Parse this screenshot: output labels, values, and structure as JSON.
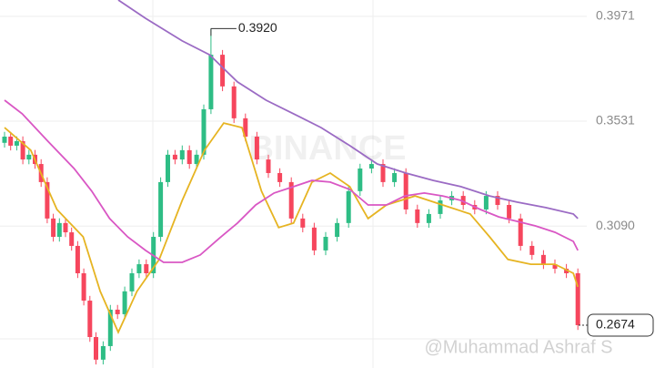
{
  "chart_data": {
    "type": "candlestick",
    "ylim": [
      0.2494,
      0.404
    ],
    "yticks": [
      0.3971,
      0.3531,
      {
        "value": 0.309,
        "label": "0.3090"
      }
    ],
    "grid": true,
    "up_color": "#2ebd85",
    "down_color": "#f6465d",
    "open": [
      0.344,
      0.3466,
      0.3428,
      0.3447,
      0.337,
      0.339,
      0.3351,
      0.3275,
      0.3122,
      0.3045,
      0.3103,
      0.3064,
      0.3007,
      0.2892,
      0.2777,
      0.2624,
      0.2529,
      0.2586,
      0.2739,
      0.272,
      0.2816,
      0.2892,
      0.293,
      0.2892,
      0.3045,
      0.3275,
      0.339,
      0.337,
      0.3409,
      0.3351,
      0.339,
      0.3581,
      0.381,
      0.3677,
      0.3543,
      0.3466,
      0.337,
      0.3313,
      0.3275,
      0.3122,
      0.3084,
      0.2988,
      0.3045,
      0.3103,
      0.3237,
      0.3332,
      0.3351,
      0.3275,
      0.3313,
      0.316,
      0.3103,
      0.3141,
      0.3198,
      0.3217,
      0.3179,
      0.316,
      0.3217,
      0.3179,
      0.3122,
      0.3007,
      0.2969,
      0.293,
      0.2911,
      0.2892
    ],
    "high": [
      0.3486,
      0.3486,
      0.3467,
      0.3467,
      0.341,
      0.341,
      0.3371,
      0.3295,
      0.3142,
      0.3123,
      0.3123,
      0.3084,
      0.3027,
      0.2912,
      0.2797,
      0.2644,
      0.2606,
      0.2759,
      0.2759,
      0.2836,
      0.2912,
      0.295,
      0.295,
      0.3065,
      0.3295,
      0.341,
      0.341,
      0.3429,
      0.3429,
      0.341,
      0.3601,
      0.392,
      0.383,
      0.3697,
      0.3563,
      0.3486,
      0.339,
      0.3333,
      0.3295,
      0.3142,
      0.3104,
      0.3065,
      0.3123,
      0.3257,
      0.3352,
      0.3371,
      0.3371,
      0.3333,
      0.3333,
      0.318,
      0.3161,
      0.3218,
      0.3237,
      0.3237,
      0.3199,
      0.3237,
      0.3237,
      0.3199,
      0.3142,
      0.3027,
      0.2989,
      0.295,
      0.2931,
      0.2912
    ],
    "low": [
      0.342,
      0.3408,
      0.3408,
      0.335,
      0.335,
      0.3331,
      0.3255,
      0.3102,
      0.3025,
      0.3025,
      0.3044,
      0.2987,
      0.2872,
      0.2757,
      0.2604,
      0.2509,
      0.2509,
      0.2566,
      0.27,
      0.27,
      0.2796,
      0.2872,
      0.2872,
      0.2872,
      0.3025,
      0.3255,
      0.335,
      0.335,
      0.3331,
      0.3331,
      0.337,
      0.3561,
      0.3657,
      0.3523,
      0.3446,
      0.335,
      0.3293,
      0.3255,
      0.3102,
      0.3064,
      0.2968,
      0.2968,
      0.3025,
      0.3083,
      0.3217,
      0.3312,
      0.3255,
      0.3255,
      0.314,
      0.3083,
      0.3083,
      0.3121,
      0.3178,
      0.3159,
      0.314,
      0.314,
      0.3159,
      0.3102,
      0.2987,
      0.2949,
      0.291,
      0.2891,
      0.2872,
      0.2654
    ],
    "close": [
      0.3466,
      0.3428,
      0.3447,
      0.337,
      0.339,
      0.3351,
      0.3275,
      0.3122,
      0.3045,
      0.3103,
      0.3064,
      0.3007,
      0.2892,
      0.2777,
      0.2624,
      0.2529,
      0.2586,
      0.2739,
      0.272,
      0.2816,
      0.2892,
      0.293,
      0.2892,
      0.3045,
      0.3275,
      0.339,
      0.337,
      0.3409,
      0.3351,
      0.339,
      0.3581,
      0.381,
      0.3677,
      0.3543,
      0.3466,
      0.337,
      0.3313,
      0.3275,
      0.3122,
      0.3084,
      0.2988,
      0.3045,
      0.3103,
      0.3237,
      0.3332,
      0.3351,
      0.3275,
      0.3313,
      0.316,
      0.3103,
      0.3141,
      0.3198,
      0.3217,
      0.3179,
      0.316,
      0.3217,
      0.3179,
      0.3122,
      0.3007,
      0.2969,
      0.293,
      0.2911,
      0.2892,
      0.2674
    ],
    "lines": [
      {
        "color": "#e6b422",
        "x": [
          0,
          4.3,
          8.6,
          12.9,
          15.6,
          18.1,
          20.7,
          23.8,
          27,
          30.1,
          32.1,
          33.7,
          35.4,
          36.9,
          38.2,
          39.8,
          41.4,
          43.1,
          44.7,
          46.3,
          48.8,
          51.2,
          53.6,
          55.3,
          56.9,
          58.9,
          61,
          62.6,
          63
        ],
        "values": [
          0.3504,
          0.3409,
          0.316,
          0.3045,
          0.2816,
          0.2644,
          0.2816,
          0.295,
          0.3198,
          0.3409,
          0.3523,
          0.3504,
          0.3237,
          0.3084,
          0.3103,
          0.3275,
          0.3313,
          0.3256,
          0.3122,
          0.3179,
          0.3217,
          0.3179,
          0.3141,
          0.3045,
          0.295,
          0.293,
          0.293,
          0.2892,
          0.2835
        ]
      },
      {
        "color": "#d957c4",
        "x": [
          0,
          2.9,
          7.1,
          11.4,
          14.3,
          16.9,
          19.4,
          21.9,
          24.4,
          27,
          29.5,
          31.7,
          33.3,
          34.9,
          36.5,
          38.2,
          39.8,
          41.4,
          43.1,
          44.7,
          46.3,
          47.9,
          49.6,
          51.2,
          52.8,
          54.5,
          56.1,
          57.7,
          59.3,
          61,
          62.6,
          63
        ],
        "values": [
          0.3619,
          0.3562,
          0.3447,
          0.3332,
          0.3237,
          0.3122,
          0.3045,
          0.2988,
          0.2938,
          0.2938,
          0.2969,
          0.3038,
          0.3103,
          0.3179,
          0.3229,
          0.3256,
          0.3282,
          0.3275,
          0.3244,
          0.3179,
          0.3179,
          0.3217,
          0.3229,
          0.3217,
          0.3198,
          0.316,
          0.3129,
          0.311,
          0.3091,
          0.3064,
          0.3026,
          0.2988
        ]
      },
      {
        "color": "#9b6bc4",
        "x": [
          18.1,
          21.9,
          27,
          30.8,
          33.3,
          35.8,
          38.2,
          40.6,
          43.1,
          45.5,
          48,
          50.4,
          52.8,
          55.3,
          57.7,
          60.2,
          62.6,
          63
        ],
        "values": [
          0.404,
          0.3963,
          0.3868,
          0.381,
          0.3696,
          0.3619,
          0.3562,
          0.3504,
          0.3428,
          0.3351,
          0.3313,
          0.3282,
          0.3256,
          0.3217,
          0.3191,
          0.3168,
          0.3141,
          0.3122
        ]
      }
    ],
    "max_label": {
      "value": 0.392,
      "label": "0.3920"
    },
    "last_price": 0.2674,
    "watermarks": [
      "BINANCE",
      "@Muhammad Ashraf S"
    ]
  }
}
